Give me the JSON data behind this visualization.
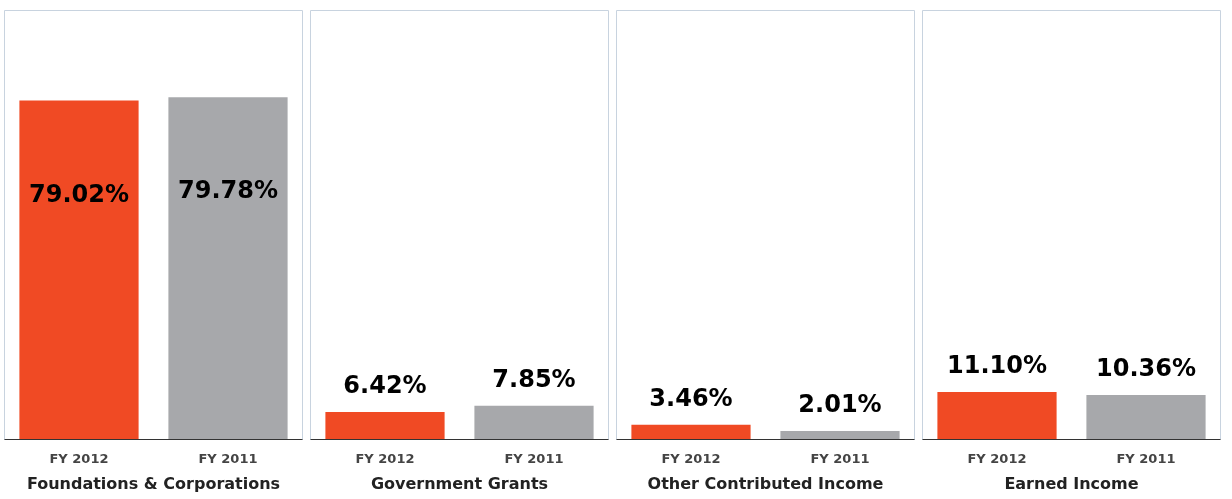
{
  "chart_data": [
    {
      "type": "bar",
      "xlabel": "Foundations & Corporations",
      "categories": [
        "FY 2012",
        "FY 2011"
      ],
      "values": [
        79.02,
        79.78
      ],
      "colors": [
        "#f04a24",
        "#a7a8ab"
      ],
      "value_labels": [
        "79.02%",
        "79.78%"
      ],
      "ylim": [
        0,
        100
      ],
      "tick_labels": "x"
    },
    {
      "type": "bar",
      "xlabel": "Government Grants",
      "categories": [
        "FY 2012",
        "FY 2011"
      ],
      "values": [
        6.42,
        7.85
      ],
      "colors": [
        "#f04a24",
        "#a7a8ab"
      ],
      "value_labels": [
        "6.42%",
        "7.85%"
      ],
      "ylim": [
        0,
        100
      ],
      "tick_labels": "x"
    },
    {
      "type": "bar",
      "xlabel": "Other Contributed Income",
      "categories": [
        "FY 2012",
        "FY 2011"
      ],
      "values": [
        3.46,
        2.01
      ],
      "colors": [
        "#f04a24",
        "#a7a8ab"
      ],
      "value_labels": [
        "3.46%",
        "2.01%"
      ],
      "ylim": [
        0,
        100
      ],
      "tick_labels": "x"
    },
    {
      "type": "bar",
      "xlabel": "Earned Income",
      "categories": [
        "FY 2012",
        "FY 2011"
      ],
      "values": [
        11.1,
        10.36
      ],
      "colors": [
        "#f04a24",
        "#a7a8ab"
      ],
      "value_labels": [
        "11.10%",
        "10.36%"
      ],
      "ylim": [
        0,
        100
      ],
      "tick_labels": "x"
    }
  ]
}
